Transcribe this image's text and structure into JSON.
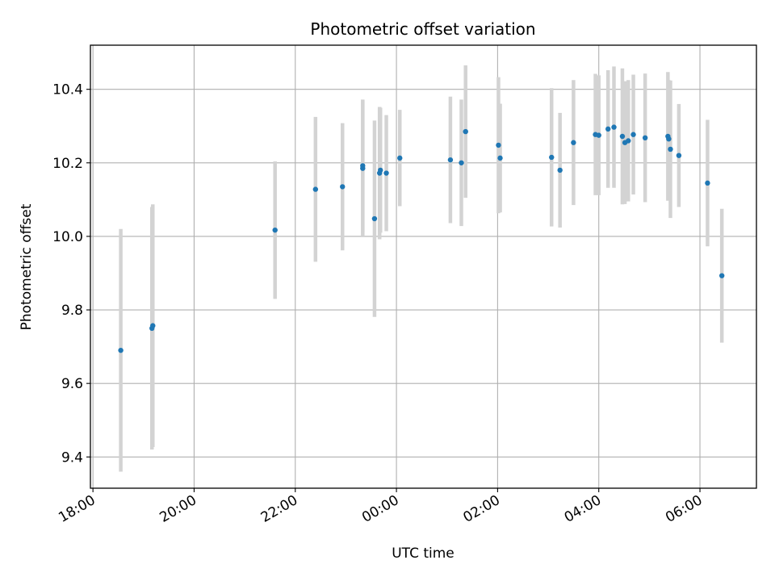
{
  "chart_data": {
    "type": "scatter",
    "title": "Photometric offset variation",
    "xlabel": "UTC time",
    "ylabel": "Photometric offset",
    "x_ticks": [
      "18:00",
      "20:00",
      "22:00",
      "00:00",
      "02:00",
      "04:00",
      "06:00"
    ],
    "y_ticks": [
      "9.4",
      "9.6",
      "9.8",
      "10.0",
      "10.2",
      "10.4"
    ],
    "xlim": [
      "17:57",
      "07:07"
    ],
    "ylim": [
      9.315,
      10.52
    ],
    "grid": true,
    "colors": {
      "point": "#1f77b4",
      "errorbar": "#d3d3d3",
      "grid": "#b0b0b0"
    },
    "points": [
      {
        "x": "18:33",
        "y": 9.69,
        "err": 0.33
      },
      {
        "x": "19:10",
        "y": 9.75,
        "err": 0.33
      },
      {
        "x": "19:11",
        "y": 9.757,
        "err": 0.33
      },
      {
        "x": "21:36",
        "y": 10.017,
        "err": 0.187
      },
      {
        "x": "22:24",
        "y": 10.128,
        "err": 0.197
      },
      {
        "x": "22:56",
        "y": 10.135,
        "err": 0.173
      },
      {
        "x": "23:20",
        "y": 10.185,
        "err": 0.185
      },
      {
        "x": "23:20",
        "y": 10.192,
        "err": 0.18
      },
      {
        "x": "23:34",
        "y": 10.048,
        "err": 0.267
      },
      {
        "x": "23:40",
        "y": 10.172,
        "err": 0.18
      },
      {
        "x": "23:41",
        "y": 10.18,
        "err": 0.17
      },
      {
        "x": "23:48",
        "y": 10.172,
        "err": 0.158
      },
      {
        "x": "00:04",
        "y": 10.213,
        "err": 0.131
      },
      {
        "x": "01:04",
        "y": 10.208,
        "err": 0.172
      },
      {
        "x": "01:17",
        "y": 10.2,
        "err": 0.172
      },
      {
        "x": "01:22",
        "y": 10.285,
        "err": 0.18
      },
      {
        "x": "02:01",
        "y": 10.248,
        "err": 0.185
      },
      {
        "x": "02:03",
        "y": 10.213,
        "err": 0.148
      },
      {
        "x": "03:04",
        "y": 10.215,
        "err": 0.188
      },
      {
        "x": "03:14",
        "y": 10.18,
        "err": 0.156
      },
      {
        "x": "03:30",
        "y": 10.255,
        "err": 0.17
      },
      {
        "x": "03:56",
        "y": 10.277,
        "err": 0.165
      },
      {
        "x": "04:00",
        "y": 10.275,
        "err": 0.163
      },
      {
        "x": "04:11",
        "y": 10.292,
        "err": 0.16
      },
      {
        "x": "04:18",
        "y": 10.297,
        "err": 0.165
      },
      {
        "x": "04:28",
        "y": 10.272,
        "err": 0.185
      },
      {
        "x": "04:31",
        "y": 10.255,
        "err": 0.167
      },
      {
        "x": "04:35",
        "y": 10.26,
        "err": 0.165
      },
      {
        "x": "04:41",
        "y": 10.277,
        "err": 0.163
      },
      {
        "x": "04:55",
        "y": 10.268,
        "err": 0.175
      },
      {
        "x": "05:22",
        "y": 10.272,
        "err": 0.175
      },
      {
        "x": "05:23",
        "y": 10.265,
        "err": 0.16
      },
      {
        "x": "05:25",
        "y": 10.237,
        "err": 0.187
      },
      {
        "x": "05:35",
        "y": 10.22,
        "err": 0.14
      },
      {
        "x": "06:09",
        "y": 10.145,
        "err": 0.172
      },
      {
        "x": "06:26",
        "y": 9.893,
        "err": 0.182
      }
    ]
  }
}
